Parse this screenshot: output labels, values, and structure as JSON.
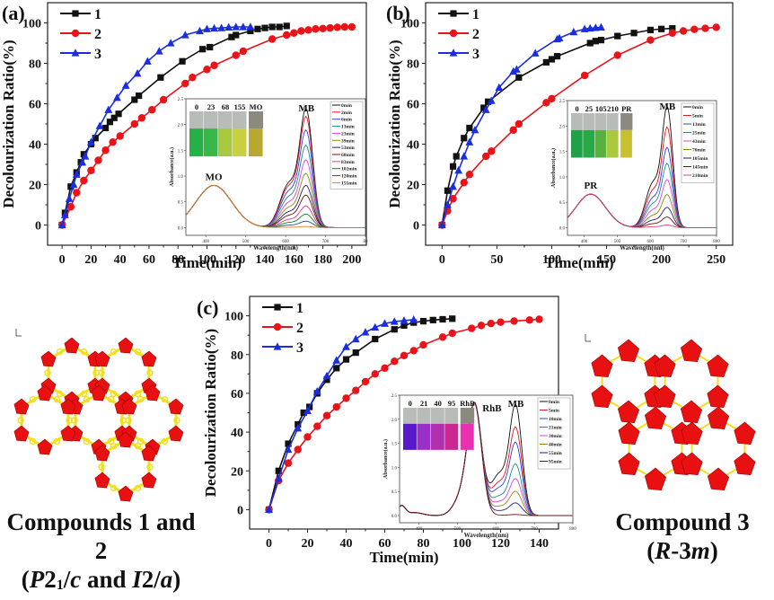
{
  "figure": {
    "captions": {
      "left": {
        "line1": "Compounds 1 and 2",
        "line2_parts": [
          "(",
          "P",
          "2",
          "1",
          "/",
          "c",
          " and ",
          "I",
          "2/",
          "a",
          ")"
        ]
      },
      "right": {
        "line1": "Compound 3",
        "line2_parts": [
          "(",
          "R",
          "-3",
          "m",
          ")"
        ]
      }
    },
    "colors": {
      "series1": "#111111",
      "series2": "#e8141a",
      "series3": "#1a2ee0",
      "polyhedra": "#e81010",
      "ligand": "#f0e020"
    }
  },
  "chart_data": [
    {
      "panel": "(a)",
      "type": "line",
      "xlabel": "Time(min)",
      "ylabel": "Decolourization Ratio(%)",
      "xlim": [
        -10,
        210
      ],
      "ylim": [
        -10,
        110
      ],
      "xticks": [
        0,
        20,
        40,
        60,
        80,
        100,
        120,
        140,
        160,
        180,
        200
      ],
      "yticks": [
        0,
        20,
        40,
        60,
        80,
        100
      ],
      "legend": "top-left",
      "series": [
        {
          "name": "1",
          "marker": "square",
          "color": "#111111",
          "x": [
            0,
            2,
            6,
            10,
            13,
            15,
            20,
            23,
            30,
            33,
            36,
            39,
            50,
            53,
            68,
            83,
            97,
            102,
            117,
            120,
            130,
            135,
            140,
            145,
            150,
            155
          ],
          "y": [
            0,
            6,
            19,
            26,
            31,
            35,
            40,
            43,
            48,
            51,
            53,
            55,
            62,
            64,
            73,
            81,
            87,
            88,
            93,
            94,
            96,
            97,
            97.5,
            98,
            98,
            98.5
          ]
        },
        {
          "name": "2",
          "marker": "circle",
          "color": "#e8141a",
          "x": [
            0,
            6,
            10,
            15,
            20,
            25,
            30,
            35,
            40,
            50,
            55,
            62,
            70,
            85,
            90,
            100,
            105,
            120,
            125,
            145,
            155,
            160,
            165,
            170,
            175,
            180,
            185,
            190,
            195,
            200
          ],
          "y": [
            0,
            9,
            16,
            22,
            27,
            32,
            37,
            41,
            44,
            50,
            53,
            57,
            62,
            70,
            73,
            77,
            79,
            84,
            86,
            92,
            94,
            95,
            96,
            96.5,
            97,
            97.2,
            97.5,
            97.8,
            98,
            98
          ]
        },
        {
          "name": "3",
          "marker": "triangle",
          "color": "#1a2ee0",
          "x": [
            0,
            2,
            5,
            8,
            10,
            14,
            16,
            20,
            26,
            32,
            38,
            44,
            52,
            59,
            67,
            75,
            85,
            95,
            100,
            105,
            110,
            115,
            120,
            125,
            130
          ],
          "y": [
            0,
            5,
            13,
            20,
            25,
            31,
            34,
            41,
            49,
            57,
            63,
            69,
            75,
            81,
            86,
            90,
            94,
            96,
            97,
            97.3,
            97.5,
            97.8,
            98,
            98,
            98
          ]
        }
      ],
      "inset": {
        "xlabel": "Wavelength(nm)",
        "ylabel": "Absorbance(a.u.)",
        "xlim": [
          350,
          800
        ],
        "ylim": [
          -0.15,
          2.5
        ],
        "xticks": [
          "400",
          "500",
          "600",
          "700",
          "80"
        ],
        "yticks": [
          "0.0",
          "0.5",
          "1.0",
          "1.5",
          "2.0",
          "2.5"
        ],
        "peak_labels": [
          "MO",
          "MB"
        ],
        "dye_peak_nm": 420,
        "dye_peak_abs": 0.82,
        "mb_peak_abs": [
          2.2,
          2.05,
          1.8,
          1.52,
          1.25,
          1.0,
          0.78,
          0.6,
          0.4,
          0.25,
          0.12,
          0.02
        ],
        "legend": [
          "0min",
          "2min",
          "6min",
          "13min",
          "23min",
          "39min",
          "53min",
          "68min",
          "83min",
          "102min",
          "120min",
          "155min"
        ],
        "legend_colors": [
          "#111111",
          "#e8141a",
          "#3040e0",
          "#1a8c8c",
          "#e040e0",
          "#8a8a10",
          "#202070",
          "#701010",
          "#e0407a",
          "#108030",
          "#205090",
          "#e08020"
        ],
        "vial_labels": [
          "0",
          "23",
          "68",
          "155",
          "MO"
        ],
        "vial_colors": [
          "#28b048",
          "#38b848",
          "#a8c840",
          "#c8d040",
          "#b8a830"
        ]
      }
    },
    {
      "panel": "(b)",
      "type": "line",
      "xlabel": "Time(min)",
      "ylabel": "Decolourization Ratio(%)",
      "xlim": [
        -15,
        265
      ],
      "ylim": [
        -10,
        110
      ],
      "xticks": [
        0,
        50,
        100,
        150,
        200,
        250
      ],
      "yticks": [
        0,
        20,
        40,
        60,
        80,
        100
      ],
      "legend": "top-left",
      "series": [
        {
          "name": "1",
          "marker": "square",
          "color": "#111111",
          "x": [
            0,
            5,
            10,
            13,
            20,
            25,
            38,
            42,
            70,
            95,
            100,
            105,
            135,
            140,
            145,
            160,
            175,
            190,
            200,
            210
          ],
          "y": [
            0,
            17,
            29,
            34,
            43,
            48,
            58,
            61,
            73,
            80.5,
            82,
            83.5,
            90,
            91,
            91.5,
            93.5,
            95,
            96.5,
            97,
            97.3
          ]
        },
        {
          "name": "2",
          "marker": "circle",
          "color": "#e8141a",
          "x": [
            0,
            5,
            10,
            20,
            25,
            40,
            45,
            65,
            70,
            95,
            100,
            130,
            160,
            190,
            210,
            220,
            230,
            240,
            250
          ],
          "y": [
            0,
            7,
            13,
            21,
            25,
            34,
            36.5,
            47,
            50,
            60.5,
            62.5,
            74,
            84,
            91.5,
            95,
            96,
            96.8,
            97.3,
            97.8
          ]
        },
        {
          "name": "3",
          "marker": "triangle",
          "color": "#1a2ee0",
          "x": [
            0,
            5,
            10,
            15,
            20,
            25,
            30,
            40,
            45,
            52,
            65,
            68,
            85,
            105,
            107,
            120,
            130,
            135,
            140,
            145
          ],
          "y": [
            0,
            10,
            19,
            27,
            34,
            41,
            47,
            57,
            61.5,
            68,
            76,
            77,
            85,
            92,
            92.5,
            95.5,
            97,
            97.3,
            97.6,
            97.8
          ]
        }
      ],
      "inset": {
        "xlabel": "Wavelength(nm)",
        "ylabel": "Absorbance(a.u.)",
        "xlim": [
          350,
          800
        ],
        "ylim": [
          -0.15,
          2.5
        ],
        "xticks": [
          "400",
          "500",
          "600",
          "700",
          "800"
        ],
        "yticks": [
          "0.0",
          "0.5",
          "1.0",
          "1.5",
          "2.0",
          "2.5"
        ],
        "peak_labels": [
          "PR",
          "MB"
        ],
        "dye_peak_nm": 420,
        "dye_peak_abs": 0.66,
        "mb_peak_abs": [
          2.27,
          1.88,
          1.5,
          1.2,
          0.9,
          0.62,
          0.38,
          0.2,
          0.05
        ],
        "legend": [
          "0min",
          "5min",
          "13min",
          "25min",
          "43min",
          "70min",
          "105min",
          "145min",
          "210min"
        ],
        "legend_colors": [
          "#111111",
          "#e8141a",
          "#3040e0",
          "#1a8c8c",
          "#e040e0",
          "#8a8a10",
          "#202070",
          "#701010",
          "#e0407a"
        ],
        "vial_labels": [
          "0",
          "25",
          "105",
          "210",
          "PR"
        ],
        "vial_colors": [
          "#22a048",
          "#28a848",
          "#58b040",
          "#a8c840",
          "#c8c030"
        ]
      }
    },
    {
      "panel": "(c)",
      "type": "line",
      "xlabel": "Time(min)",
      "ylabel": "Decolourization Ratio(%)",
      "xlim": [
        -10,
        150
      ],
      "ylim": [
        -10,
        110
      ],
      "xticks": [
        0,
        20,
        40,
        60,
        80,
        100,
        120,
        140
      ],
      "yticks": [
        0,
        20,
        40,
        60,
        80,
        100
      ],
      "legend": "top-left",
      "series": [
        {
          "name": "1",
          "marker": "square",
          "color": "#111111",
          "x": [
            0,
            5,
            10,
            15,
            18,
            21,
            25,
            30,
            35,
            40,
            45,
            55,
            65,
            70,
            75,
            80,
            85,
            90,
            95
          ],
          "y": [
            0,
            20,
            34,
            44,
            50,
            53,
            60,
            67,
            73,
            77.5,
            81,
            88,
            93,
            95,
            96.5,
            97.2,
            97.8,
            98.2,
            98.5
          ]
        },
        {
          "name": "2",
          "marker": "circle",
          "color": "#e8141a",
          "x": [
            0,
            5,
            10,
            15,
            20,
            25,
            30,
            35,
            40,
            45,
            50,
            55,
            60,
            65,
            70,
            75,
            80,
            90,
            95,
            105,
            110,
            115,
            120,
            127,
            135,
            140
          ],
          "y": [
            0,
            15,
            24,
            31,
            37.5,
            43,
            48.5,
            53,
            57.5,
            61.5,
            66,
            70,
            73,
            76.5,
            79.5,
            82,
            85,
            89,
            91,
            93.5,
            95,
            96,
            96.7,
            97.3,
            97.8,
            98.2
          ]
        },
        {
          "name": "3",
          "marker": "triangle",
          "color": "#1a2ee0",
          "x": [
            0,
            5,
            10,
            15,
            20,
            25,
            30,
            35,
            40,
            45,
            50,
            55,
            60,
            65,
            70,
            75
          ],
          "y": [
            0,
            16,
            31,
            42,
            51,
            61,
            69,
            77,
            84,
            88,
            91.5,
            94,
            96,
            97,
            97.5,
            98
          ]
        }
      ],
      "inset": {
        "xlabel": "Wavelength(nm)",
        "ylabel": "Absorbance(a.u.)",
        "xlim": [
          350,
          800
        ],
        "ylim": [
          -0.15,
          2.5
        ],
        "xticks": [
          "400",
          "500",
          "600",
          "700",
          "800"
        ],
        "yticks": [
          "0.0",
          "0.5",
          "1.0",
          "1.5",
          "2.0",
          "2.5"
        ],
        "peak_labels": [
          "RhB",
          "MB"
        ],
        "dye_peak_nm": 545,
        "dye_peak_abs": 2.27,
        "mb_peak_abs": [
          2.2,
          1.75,
          1.45,
          1.02,
          0.73,
          0.48,
          0.25,
          0.02
        ],
        "legend": [
          "0min",
          "5min",
          "10min",
          "21min",
          "30min",
          "40min",
          "55min",
          "95min"
        ],
        "legend_colors": [
          "#111111",
          "#e8141a",
          "#3040e0",
          "#1a8c8c",
          "#e040e0",
          "#8a8a10",
          "#202070",
          "#701010"
        ],
        "vial_labels": [
          "0",
          "21",
          "40",
          "95",
          "RhB"
        ],
        "vial_colors": [
          "#5a18c8",
          "#9a30c8",
          "#b030b0",
          "#c82890",
          "#e830b0"
        ]
      }
    }
  ]
}
